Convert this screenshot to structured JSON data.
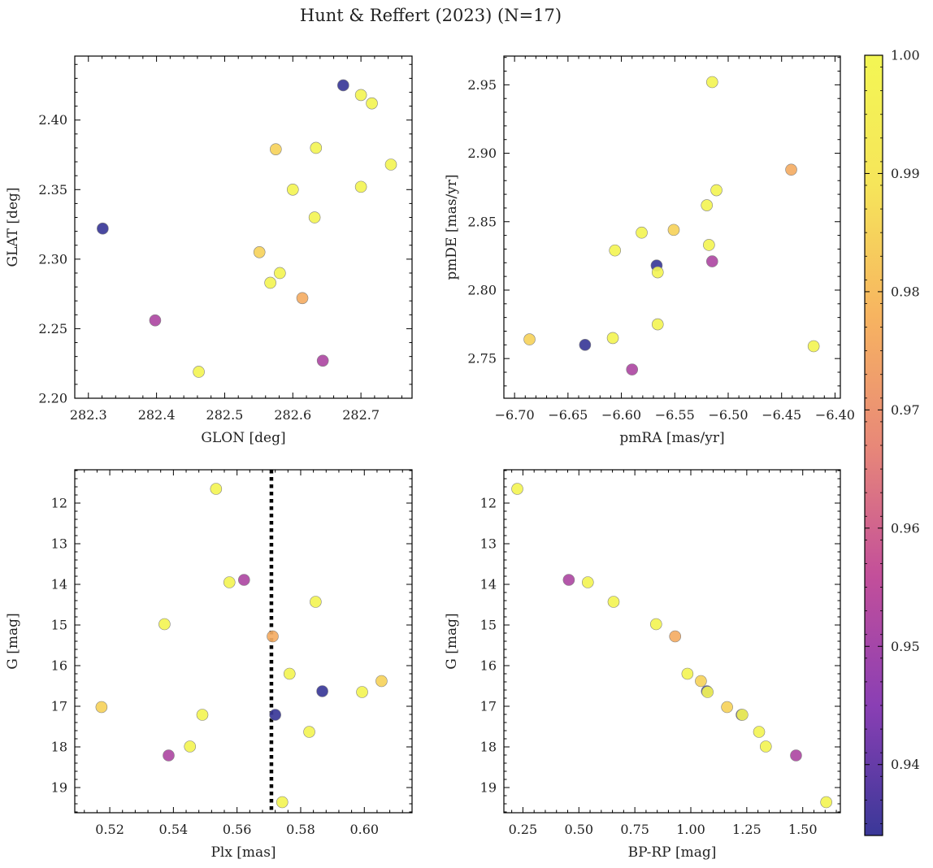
{
  "figure": {
    "title": "Hunt & Reffert (2023) (N=17)"
  },
  "colorbar": {
    "label": "",
    "range": [
      0.934,
      1.0
    ],
    "ticks": [
      0.94,
      0.95,
      0.96,
      0.97,
      0.98,
      0.99,
      1.0
    ],
    "tick_labels": [
      "0.94",
      "0.95",
      "0.96",
      "0.97",
      "0.98",
      "0.99",
      "1.00"
    ],
    "colormap": "plasma",
    "colormap_stops": [
      "#3a3898",
      "#8a3fb4",
      "#c34f9a",
      "#e88878",
      "#f7b460",
      "#f6e55a",
      "#f3f654"
    ]
  },
  "chart_data": [
    {
      "type": "scatter",
      "title": "",
      "xlabel": "GLON [deg]",
      "ylabel": "GLAT [deg]",
      "xlim": [
        282.28,
        282.775
      ],
      "ylim": [
        2.2,
        2.446
      ],
      "xticks": [
        282.3,
        282.4,
        282.5,
        282.6,
        282.7
      ],
      "xtick_labels": [
        "282.3",
        "282.4",
        "282.5",
        "282.6",
        "282.7"
      ],
      "yticks": [
        2.2,
        2.25,
        2.3,
        2.35,
        2.4
      ],
      "ytick_labels": [
        "2.20",
        "2.25",
        "2.30",
        "2.35",
        "2.40"
      ],
      "y_inverted": false,
      "points": [
        {
          "x": 282.321,
          "y": 2.322,
          "c": 0.934
        },
        {
          "x": 282.398,
          "y": 2.256,
          "c": 0.952
        },
        {
          "x": 282.462,
          "y": 2.219,
          "c": 0.999
        },
        {
          "x": 282.551,
          "y": 2.305,
          "c": 0.985
        },
        {
          "x": 282.567,
          "y": 2.283,
          "c": 0.999
        },
        {
          "x": 282.575,
          "y": 2.379,
          "c": 0.985
        },
        {
          "x": 282.581,
          "y": 2.29,
          "c": 0.999
        },
        {
          "x": 282.6,
          "y": 2.35,
          "c": 0.999
        },
        {
          "x": 282.614,
          "y": 2.272,
          "c": 0.976
        },
        {
          "x": 282.632,
          "y": 2.33,
          "c": 0.999
        },
        {
          "x": 282.634,
          "y": 2.38,
          "c": 0.999
        },
        {
          "x": 282.644,
          "y": 2.227,
          "c": 0.952
        },
        {
          "x": 282.674,
          "y": 2.425,
          "c": 0.934
        },
        {
          "x": 282.7,
          "y": 2.418,
          "c": 0.999
        },
        {
          "x": 282.7,
          "y": 2.352,
          "c": 0.999
        },
        {
          "x": 282.716,
          "y": 2.412,
          "c": 0.999
        },
        {
          "x": 282.744,
          "y": 2.368,
          "c": 0.999
        }
      ]
    },
    {
      "type": "scatter",
      "title": "",
      "xlabel": "pmRA [mas/yr]",
      "ylabel": "pmDE [mas/yr]",
      "xlim": [
        -6.71,
        -6.395
      ],
      "ylim": [
        2.721,
        2.971
      ],
      "xticks": [
        -6.7,
        -6.65,
        -6.6,
        -6.55,
        -6.5,
        -6.45,
        -6.4
      ],
      "xtick_labels": [
        "−6.70",
        "−6.65",
        "−6.60",
        "−6.55",
        "−6.50",
        "−6.45",
        "−6.40"
      ],
      "yticks": [
        2.75,
        2.8,
        2.85,
        2.9,
        2.95
      ],
      "ytick_labels": [
        "2.75",
        "2.80",
        "2.85",
        "2.90",
        "2.95"
      ],
      "y_inverted": false,
      "points": [
        {
          "x": -6.686,
          "y": 2.764,
          "c": 0.985
        },
        {
          "x": -6.634,
          "y": 2.76,
          "c": 0.934
        },
        {
          "x": -6.608,
          "y": 2.765,
          "c": 0.999
        },
        {
          "x": -6.606,
          "y": 2.829,
          "c": 0.999
        },
        {
          "x": -6.59,
          "y": 2.742,
          "c": 0.952
        },
        {
          "x": -6.581,
          "y": 2.842,
          "c": 0.999
        },
        {
          "x": -6.567,
          "y": 2.818,
          "c": 0.934
        },
        {
          "x": -6.566,
          "y": 2.813,
          "c": 0.999
        },
        {
          "x": -6.566,
          "y": 2.775,
          "c": 0.999
        },
        {
          "x": -6.551,
          "y": 2.844,
          "c": 0.985
        },
        {
          "x": -6.52,
          "y": 2.862,
          "c": 0.999
        },
        {
          "x": -6.518,
          "y": 2.833,
          "c": 0.999
        },
        {
          "x": -6.515,
          "y": 2.952,
          "c": 0.999
        },
        {
          "x": -6.515,
          "y": 2.821,
          "c": 0.952
        },
        {
          "x": -6.511,
          "y": 2.873,
          "c": 0.999
        },
        {
          "x": -6.441,
          "y": 2.888,
          "c": 0.976
        },
        {
          "x": -6.42,
          "y": 2.759,
          "c": 0.999
        }
      ]
    },
    {
      "type": "scatter",
      "title": "",
      "xlabel": "Plx [mas]",
      "ylabel": "G [mag]",
      "xlim": [
        0.509,
        0.615
      ],
      "ylim": [
        19.62,
        11.18
      ],
      "xticks": [
        0.52,
        0.54,
        0.56,
        0.58,
        0.6
      ],
      "xtick_labels": [
        "0.52",
        "0.54",
        "0.56",
        "0.58",
        "0.60"
      ],
      "yticks": [
        12,
        13,
        14,
        15,
        16,
        17,
        18,
        19
      ],
      "ytick_labels": [
        "12",
        "13",
        "14",
        "15",
        "16",
        "17",
        "18",
        "19"
      ],
      "y_inverted": true,
      "vline": {
        "x": 0.5708,
        "style": "dotted"
      },
      "points": [
        {
          "x": 0.5174,
          "y": 17.02,
          "c": 0.985
        },
        {
          "x": 0.5372,
          "y": 14.98,
          "c": 0.999
        },
        {
          "x": 0.5385,
          "y": 18.21,
          "c": 0.952
        },
        {
          "x": 0.5452,
          "y": 17.99,
          "c": 0.999
        },
        {
          "x": 0.5491,
          "y": 17.21,
          "c": 0.999
        },
        {
          "x": 0.5534,
          "y": 11.65,
          "c": 0.999
        },
        {
          "x": 0.5576,
          "y": 13.95,
          "c": 0.999
        },
        {
          "x": 0.5622,
          "y": 13.89,
          "c": 0.952
        },
        {
          "x": 0.5712,
          "y": 15.28,
          "c": 0.976
        },
        {
          "x": 0.572,
          "y": 17.21,
          "c": 0.934
        },
        {
          "x": 0.5742,
          "y": 19.36,
          "c": 0.999
        },
        {
          "x": 0.5765,
          "y": 16.2,
          "c": 0.999
        },
        {
          "x": 0.5827,
          "y": 17.63,
          "c": 0.999
        },
        {
          "x": 0.5847,
          "y": 14.43,
          "c": 0.999
        },
        {
          "x": 0.5868,
          "y": 16.63,
          "c": 0.934
        },
        {
          "x": 0.5993,
          "y": 16.65,
          "c": 0.999
        },
        {
          "x": 0.6054,
          "y": 16.38,
          "c": 0.985
        }
      ]
    },
    {
      "type": "scatter",
      "title": "",
      "xlabel": "BP-RP [mag]",
      "ylabel": "G [mag]",
      "xlim": [
        0.165,
        1.668
      ],
      "ylim": [
        19.62,
        11.18
      ],
      "xticks": [
        0.25,
        0.5,
        0.75,
        1.0,
        1.25,
        1.5
      ],
      "xtick_labels": [
        "0.25",
        "0.50",
        "0.75",
        "1.00",
        "1.25",
        "1.50"
      ],
      "yticks": [
        12,
        13,
        14,
        15,
        16,
        17,
        18,
        19
      ],
      "ytick_labels": [
        "12",
        "13",
        "14",
        "15",
        "16",
        "17",
        "18",
        "19"
      ],
      "y_inverted": true,
      "points": [
        {
          "x": 0.225,
          "y": 11.65,
          "c": 0.999
        },
        {
          "x": 0.455,
          "y": 13.89,
          "c": 0.952
        },
        {
          "x": 0.54,
          "y": 13.95,
          "c": 0.999
        },
        {
          "x": 0.655,
          "y": 14.43,
          "c": 0.999
        },
        {
          "x": 0.845,
          "y": 14.98,
          "c": 0.999
        },
        {
          "x": 0.93,
          "y": 15.28,
          "c": 0.976
        },
        {
          "x": 0.985,
          "y": 16.2,
          "c": 0.999
        },
        {
          "x": 1.045,
          "y": 16.38,
          "c": 0.985
        },
        {
          "x": 1.072,
          "y": 16.63,
          "c": 0.934
        },
        {
          "x": 1.075,
          "y": 16.65,
          "c": 0.999
        },
        {
          "x": 1.162,
          "y": 17.02,
          "c": 0.985
        },
        {
          "x": 1.227,
          "y": 17.21,
          "c": 0.934
        },
        {
          "x": 1.23,
          "y": 17.21,
          "c": 0.999
        },
        {
          "x": 1.305,
          "y": 17.63,
          "c": 0.999
        },
        {
          "x": 1.335,
          "y": 17.99,
          "c": 0.999
        },
        {
          "x": 1.47,
          "y": 18.21,
          "c": 0.952
        },
        {
          "x": 1.605,
          "y": 19.36,
          "c": 0.999
        }
      ]
    }
  ]
}
